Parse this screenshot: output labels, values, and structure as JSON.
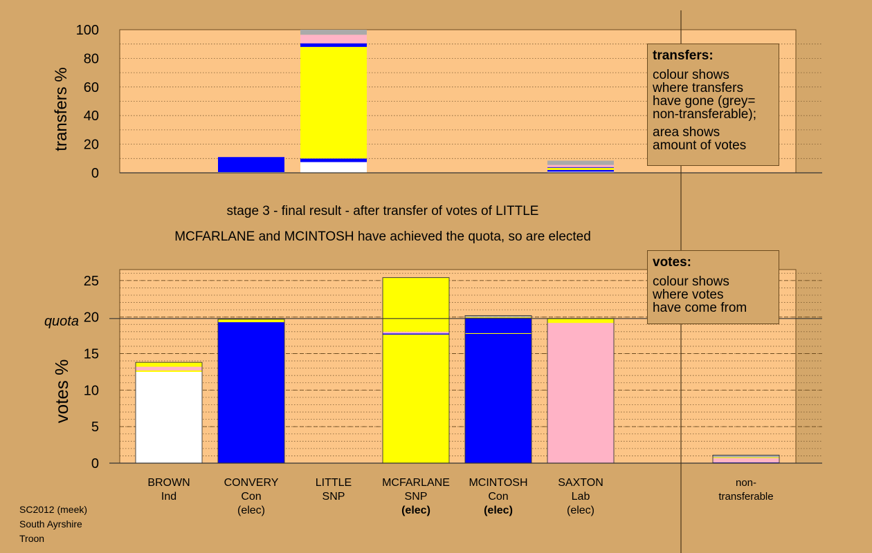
{
  "top_chart": {
    "ylabel": "transfers %",
    "yticks": [
      "0",
      "20",
      "40",
      "60",
      "80",
      "100"
    ]
  },
  "stage_title": "stage 3 - final result - after transfer of votes of LITTLE",
  "stage_note": "MCFARLANE and MCINTOSH have achieved the quota, so are elected",
  "bottom_chart": {
    "ylabel": "votes %",
    "yticks": [
      "0",
      "5",
      "10",
      "15",
      "20",
      "25"
    ],
    "quota_label": "quota"
  },
  "legend_transfers": {
    "title": "transfers:",
    "text1": "colour shows\nwhere transfers\nhave gone (grey=\nnon-transferable);",
    "text2": "area shows\namount of votes"
  },
  "legend_votes": {
    "title": "votes:",
    "text1": "colour shows\nwhere votes\nhave come from"
  },
  "candidates": [
    {
      "name": "BROWN",
      "party": "Ind",
      "status": ""
    },
    {
      "name": "CONVERY",
      "party": "Con",
      "status": "(elec)"
    },
    {
      "name": "LITTLE",
      "party": "SNP",
      "status": ""
    },
    {
      "name": "MCFARLANE",
      "party": "SNP",
      "status": "(elec)"
    },
    {
      "name": "MCINTOSH",
      "party": "Con",
      "status": "(elec)"
    },
    {
      "name": "SAXTON",
      "party": "Lab",
      "status": "(elec)"
    }
  ],
  "nontransferable_label_line1": "non-",
  "nontransferable_label_line2": "transferable",
  "footer": {
    "line1": "SC2012 (meek)",
    "line2": "South Ayrshire",
    "line3": "Troon"
  },
  "colors": {
    "background": "#d4a76a",
    "plot_area": "#fcc587",
    "Ind": "#ffffff",
    "Con": "#0000ff",
    "SNP": "#ffff00",
    "Lab": "#ffb3c6",
    "nontransferable": "#aaaaaa"
  },
  "chart_data": [
    {
      "type": "bar",
      "stacked": true,
      "title": "",
      "ylabel": "transfers %",
      "ylim": [
        0,
        100
      ],
      "categories": [
        "BROWN",
        "CONVERY",
        "LITTLE",
        "MCFARLANE",
        "MCINTOSH",
        "SAXTON",
        "non-transferable"
      ],
      "series": [
        {
          "name": "Ind",
          "color": "#ffffff",
          "values": [
            0,
            0.5,
            7.5,
            0,
            0,
            0.8,
            0
          ]
        },
        {
          "name": "Con",
          "color": "#0000ff",
          "values": [
            0,
            10.5,
            2.5,
            0,
            0,
            1.2,
            0
          ]
        },
        {
          "name": "SNP",
          "color": "#ffff00",
          "values": [
            0,
            0,
            78,
            0,
            0,
            1.5,
            0
          ]
        },
        {
          "name": "Con",
          "color": "#0000ff",
          "values": [
            0,
            0,
            2.5,
            0,
            0,
            0.5,
            0
          ]
        },
        {
          "name": "Lab",
          "color": "#ffb3c6",
          "values": [
            0,
            0,
            6,
            0,
            0,
            1.5,
            0
          ]
        },
        {
          "name": "non-transferable",
          "color": "#aaaaaa",
          "values": [
            0,
            0,
            3.5,
            0,
            0,
            3,
            0
          ]
        }
      ]
    },
    {
      "type": "bar",
      "stacked": true,
      "title": "",
      "ylabel": "votes %",
      "ylim": [
        0,
        26.5
      ],
      "quota": 19.8,
      "categories": [
        "BROWN",
        "CONVERY",
        "LITTLE",
        "MCFARLANE",
        "MCINTOSH",
        "SAXTON",
        "non-transferable"
      ],
      "series": [
        {
          "name": "Ind",
          "color": "#ffffff",
          "values": [
            12.5,
            0,
            0,
            0,
            0,
            0,
            0
          ]
        },
        {
          "name": "Con",
          "color": "#0000ff",
          "values": [
            0,
            19.3,
            0,
            0,
            17.7,
            0,
            0.1
          ]
        },
        {
          "name": "SNP",
          "color": "#ffff00",
          "values": [
            0.2,
            0.2,
            0,
            17.6,
            0.1,
            0,
            0
          ]
        },
        {
          "name": "Con",
          "color": "#0000ff",
          "values": [
            0,
            0,
            0,
            0.15,
            2.1,
            0,
            0
          ]
        },
        {
          "name": "Lab",
          "color": "#ffb3c6",
          "values": [
            0.5,
            0,
            0,
            0.25,
            0,
            19.2,
            0.6
          ]
        },
        {
          "name": "SNP",
          "color": "#ffff00",
          "values": [
            0.6,
            0.2,
            0,
            7.4,
            0.1,
            0.6,
            0.1
          ]
        },
        {
          "name": "non-transferable",
          "color": "#aaaaaa",
          "values": [
            0,
            0,
            0,
            0,
            0.2,
            0,
            0.3
          ]
        }
      ]
    }
  ]
}
